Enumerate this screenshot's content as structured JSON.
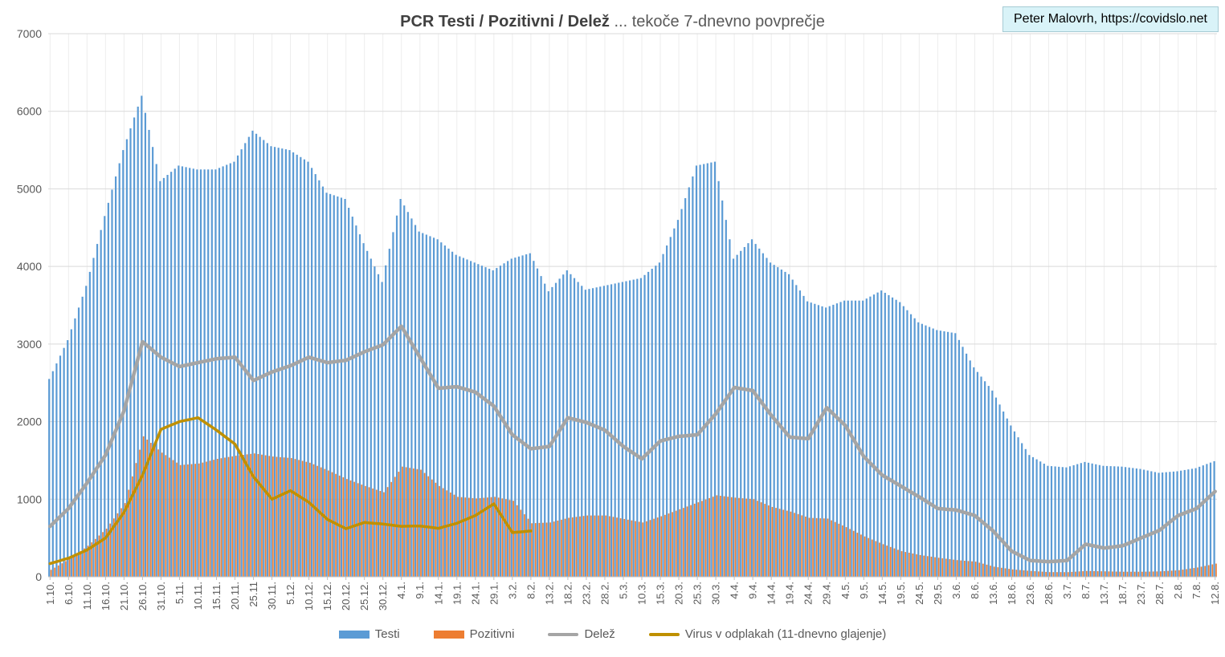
{
  "header": {
    "title_bold": "PCR Testi / Pozitivni / Delež",
    "title_rest": "... tekoče 7-dnevno povprečje",
    "credit": "Peter Malovrh, https://covidslo.net"
  },
  "colors": {
    "testi": "#5B9BD5",
    "pozitivni": "#ED7D31",
    "delez": "#A5A5A5",
    "virus": "#BF9000",
    "gridline": "#D9D9D9",
    "gridline_vertical": "#EDEDED",
    "axis": "#BFBFBF",
    "tick_label": "#595959",
    "credit_bg": "#D9F3F8",
    "credit_border": "#A6CBD4"
  },
  "chart_data": {
    "type": "bar",
    "title": "PCR Testi / Pozitivni / Delež ... tekoče 7-dnevno povprečje",
    "xlabel": "",
    "ylabel": "",
    "ylim": [
      0,
      7000
    ],
    "yticks": [
      0,
      1000,
      2000,
      3000,
      4000,
      5000,
      6000,
      7000
    ],
    "grid": true,
    "legend_position": "bottom",
    "tick_interval_days": 5,
    "note": "daily bars, tick labels every 5 days; values are 7-day running averages read from chart",
    "categories": [
      "1.10.",
      "6.10.",
      "11.10.",
      "16.10.",
      "21.10.",
      "26.10.",
      "31.10.",
      "5.11.",
      "10.11.",
      "15.11.",
      "20.11.",
      "25.11",
      "30.11.",
      "5.12.",
      "10.12.",
      "15.12.",
      "20.12.",
      "25.12.",
      "30.12.",
      "4.1.",
      "9.1.",
      "14.1.",
      "19.1.",
      "24.1.",
      "29.1.",
      "3.2.",
      "8.2.",
      "13.2.",
      "18.2.",
      "23.2.",
      "28.2.",
      "5.3.",
      "10.3.",
      "15.3.",
      "20.3.",
      "25.3.",
      "30.3.",
      "4.4.",
      "9.4.",
      "14.4.",
      "19.4.",
      "24.4.",
      "29.4.",
      "4.5.",
      "9.5.",
      "14.5.",
      "19.5.",
      "24.5.",
      "29.5.",
      "3.6.",
      "8.6.",
      "13.6.",
      "18.6.",
      "23.6.",
      "28.6.",
      "3.7.",
      "8.7.",
      "13.7.",
      "18.7.",
      "23.7.",
      "28.7.",
      "2.8.",
      "7.8.",
      "12.8."
    ],
    "series": [
      {
        "name": "Testi",
        "type": "bar",
        "color": "#5B9BD5",
        "values": [
          2550,
          3050,
          3750,
          4650,
          5500,
          6200,
          5100,
          5300,
          5250,
          5250,
          5350,
          5750,
          5550,
          5500,
          5350,
          4950,
          4870,
          4300,
          3800,
          4870,
          4450,
          4350,
          4150,
          4050,
          3950,
          4100,
          4170,
          3680,
          3950,
          3700,
          3750,
          3800,
          3850,
          4050,
          4600,
          5300,
          5350,
          4100,
          4350,
          4050,
          3900,
          3550,
          3470,
          3560,
          3560,
          3690,
          3540,
          3280,
          3180,
          3140,
          2700,
          2400,
          1950,
          1570,
          1430,
          1410,
          1480,
          1430,
          1420,
          1390,
          1340,
          1360,
          1400,
          1490
        ]
      },
      {
        "name": "Pozitivni",
        "type": "bar",
        "color": "#ED7D31",
        "values": [
          90,
          230,
          400,
          620,
          950,
          1810,
          1600,
          1440,
          1460,
          1520,
          1560,
          1590,
          1550,
          1530,
          1470,
          1370,
          1260,
          1170,
          1090,
          1420,
          1380,
          1170,
          1030,
          1010,
          1030,
          980,
          690,
          700,
          760,
          790,
          790,
          745,
          700,
          780,
          870,
          960,
          1050,
          1020,
          1000,
          900,
          840,
          760,
          750,
          640,
          520,
          420,
          330,
          280,
          245,
          215,
          195,
          130,
          95,
          75,
          60,
          60,
          75,
          70,
          65,
          65,
          70,
          85,
          120,
          170
        ]
      },
      {
        "name": "Delež",
        "type": "line",
        "color": "#A5A5A5",
        "values": [
          650,
          880,
          1210,
          1570,
          2140,
          3030,
          2830,
          2710,
          2760,
          2810,
          2830,
          2530,
          2640,
          2720,
          2830,
          2760,
          2790,
          2900,
          2990,
          3230,
          2830,
          2430,
          2450,
          2380,
          2200,
          1830,
          1650,
          1680,
          2050,
          1990,
          1890,
          1680,
          1520,
          1750,
          1810,
          1830,
          2100,
          2440,
          2400,
          2080,
          1800,
          1780,
          2180,
          1950,
          1550,
          1310,
          1170,
          1030,
          880,
          860,
          790,
          590,
          330,
          210,
          195,
          210,
          420,
          370,
          400,
          500,
          600,
          790,
          880,
          1100
        ]
      },
      {
        "name": "Virus v odplakah (11-dnevno glajenje)",
        "type": "line",
        "color": "#BF9000",
        "values": [
          170,
          240,
          345,
          500,
          830,
          1310,
          1900,
          2000,
          2050,
          1890,
          1710,
          1290,
          1000,
          1110,
          960,
          740,
          620,
          700,
          680,
          650,
          655,
          625,
          690,
          790,
          940,
          570,
          590,
          null,
          null,
          null,
          null,
          null,
          null,
          null,
          null,
          null,
          null,
          null,
          null,
          null,
          null,
          null,
          null,
          null,
          null,
          null,
          null,
          null,
          null,
          null,
          null,
          null,
          null,
          null,
          null,
          null,
          null,
          null,
          null,
          null,
          null,
          null,
          null,
          null
        ]
      }
    ]
  }
}
